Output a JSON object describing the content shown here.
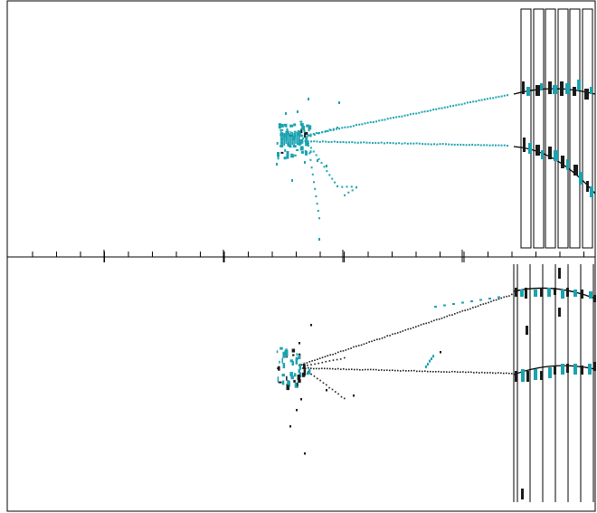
{
  "figure": {
    "description_free": true,
    "panels": [
      {
        "id": "top",
        "view": "event-display"
      },
      {
        "id": "bottom",
        "view": "event-display"
      }
    ]
  },
  "colors": {
    "frame": "#000000",
    "hit_primary": "#1aa3b0",
    "hit_secondary": "#1a1a1a",
    "background": "#ffffff"
  }
}
